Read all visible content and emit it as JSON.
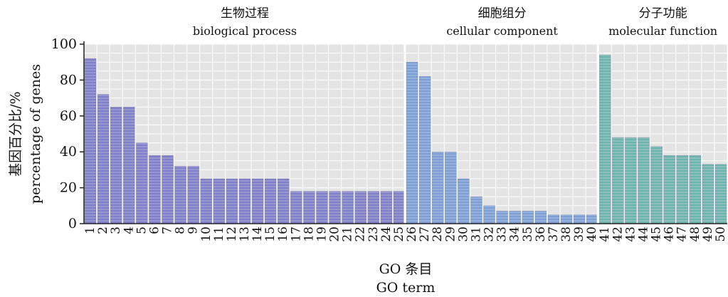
{
  "chart_data": {
    "type": "bar",
    "ylim": [
      0,
      100
    ],
    "y_ticks": [
      0,
      20,
      40,
      60,
      80,
      100
    ],
    "grid": true,
    "y_label_cn": "基因百分比/%",
    "y_label_en": "percentage of genes",
    "x_label_cn": "GO 条目",
    "x_label_en": "GO term",
    "groups": [
      {
        "label_cn": "生物过程",
        "label_en": "biological process",
        "color": "#8080c8",
        "categories": [
          "1",
          "2",
          "3",
          "4",
          "5",
          "6",
          "7",
          "8",
          "9",
          "10",
          "11",
          "12",
          "13",
          "14",
          "15",
          "16",
          "17",
          "18",
          "19",
          "20",
          "21",
          "22",
          "23",
          "24",
          "25"
        ],
        "values": [
          92,
          72,
          65,
          65,
          45,
          38,
          38,
          32,
          32,
          25,
          25,
          25,
          25,
          25,
          25,
          25,
          18,
          18,
          18,
          18,
          18,
          18,
          18,
          18,
          18
        ]
      },
      {
        "label_cn": "细胞组分",
        "label_en": "cellular component",
        "color": "#7e9fd4",
        "categories": [
          "26",
          "27",
          "28",
          "29",
          "30",
          "31",
          "32",
          "33",
          "34",
          "35",
          "36",
          "37",
          "38",
          "39",
          "40"
        ],
        "values": [
          90,
          82,
          40,
          40,
          25,
          15,
          10,
          7,
          7,
          7,
          7,
          5,
          5,
          5,
          5
        ]
      },
      {
        "label_cn": "分子功能",
        "label_en": "molecular function",
        "color": "#6fb3ad",
        "categories": [
          "41",
          "42",
          "43",
          "44",
          "45",
          "46",
          "47",
          "48",
          "49",
          "50"
        ],
        "values": [
          94,
          48,
          48,
          48,
          43,
          38,
          38,
          38,
          33,
          33
        ]
      }
    ]
  }
}
